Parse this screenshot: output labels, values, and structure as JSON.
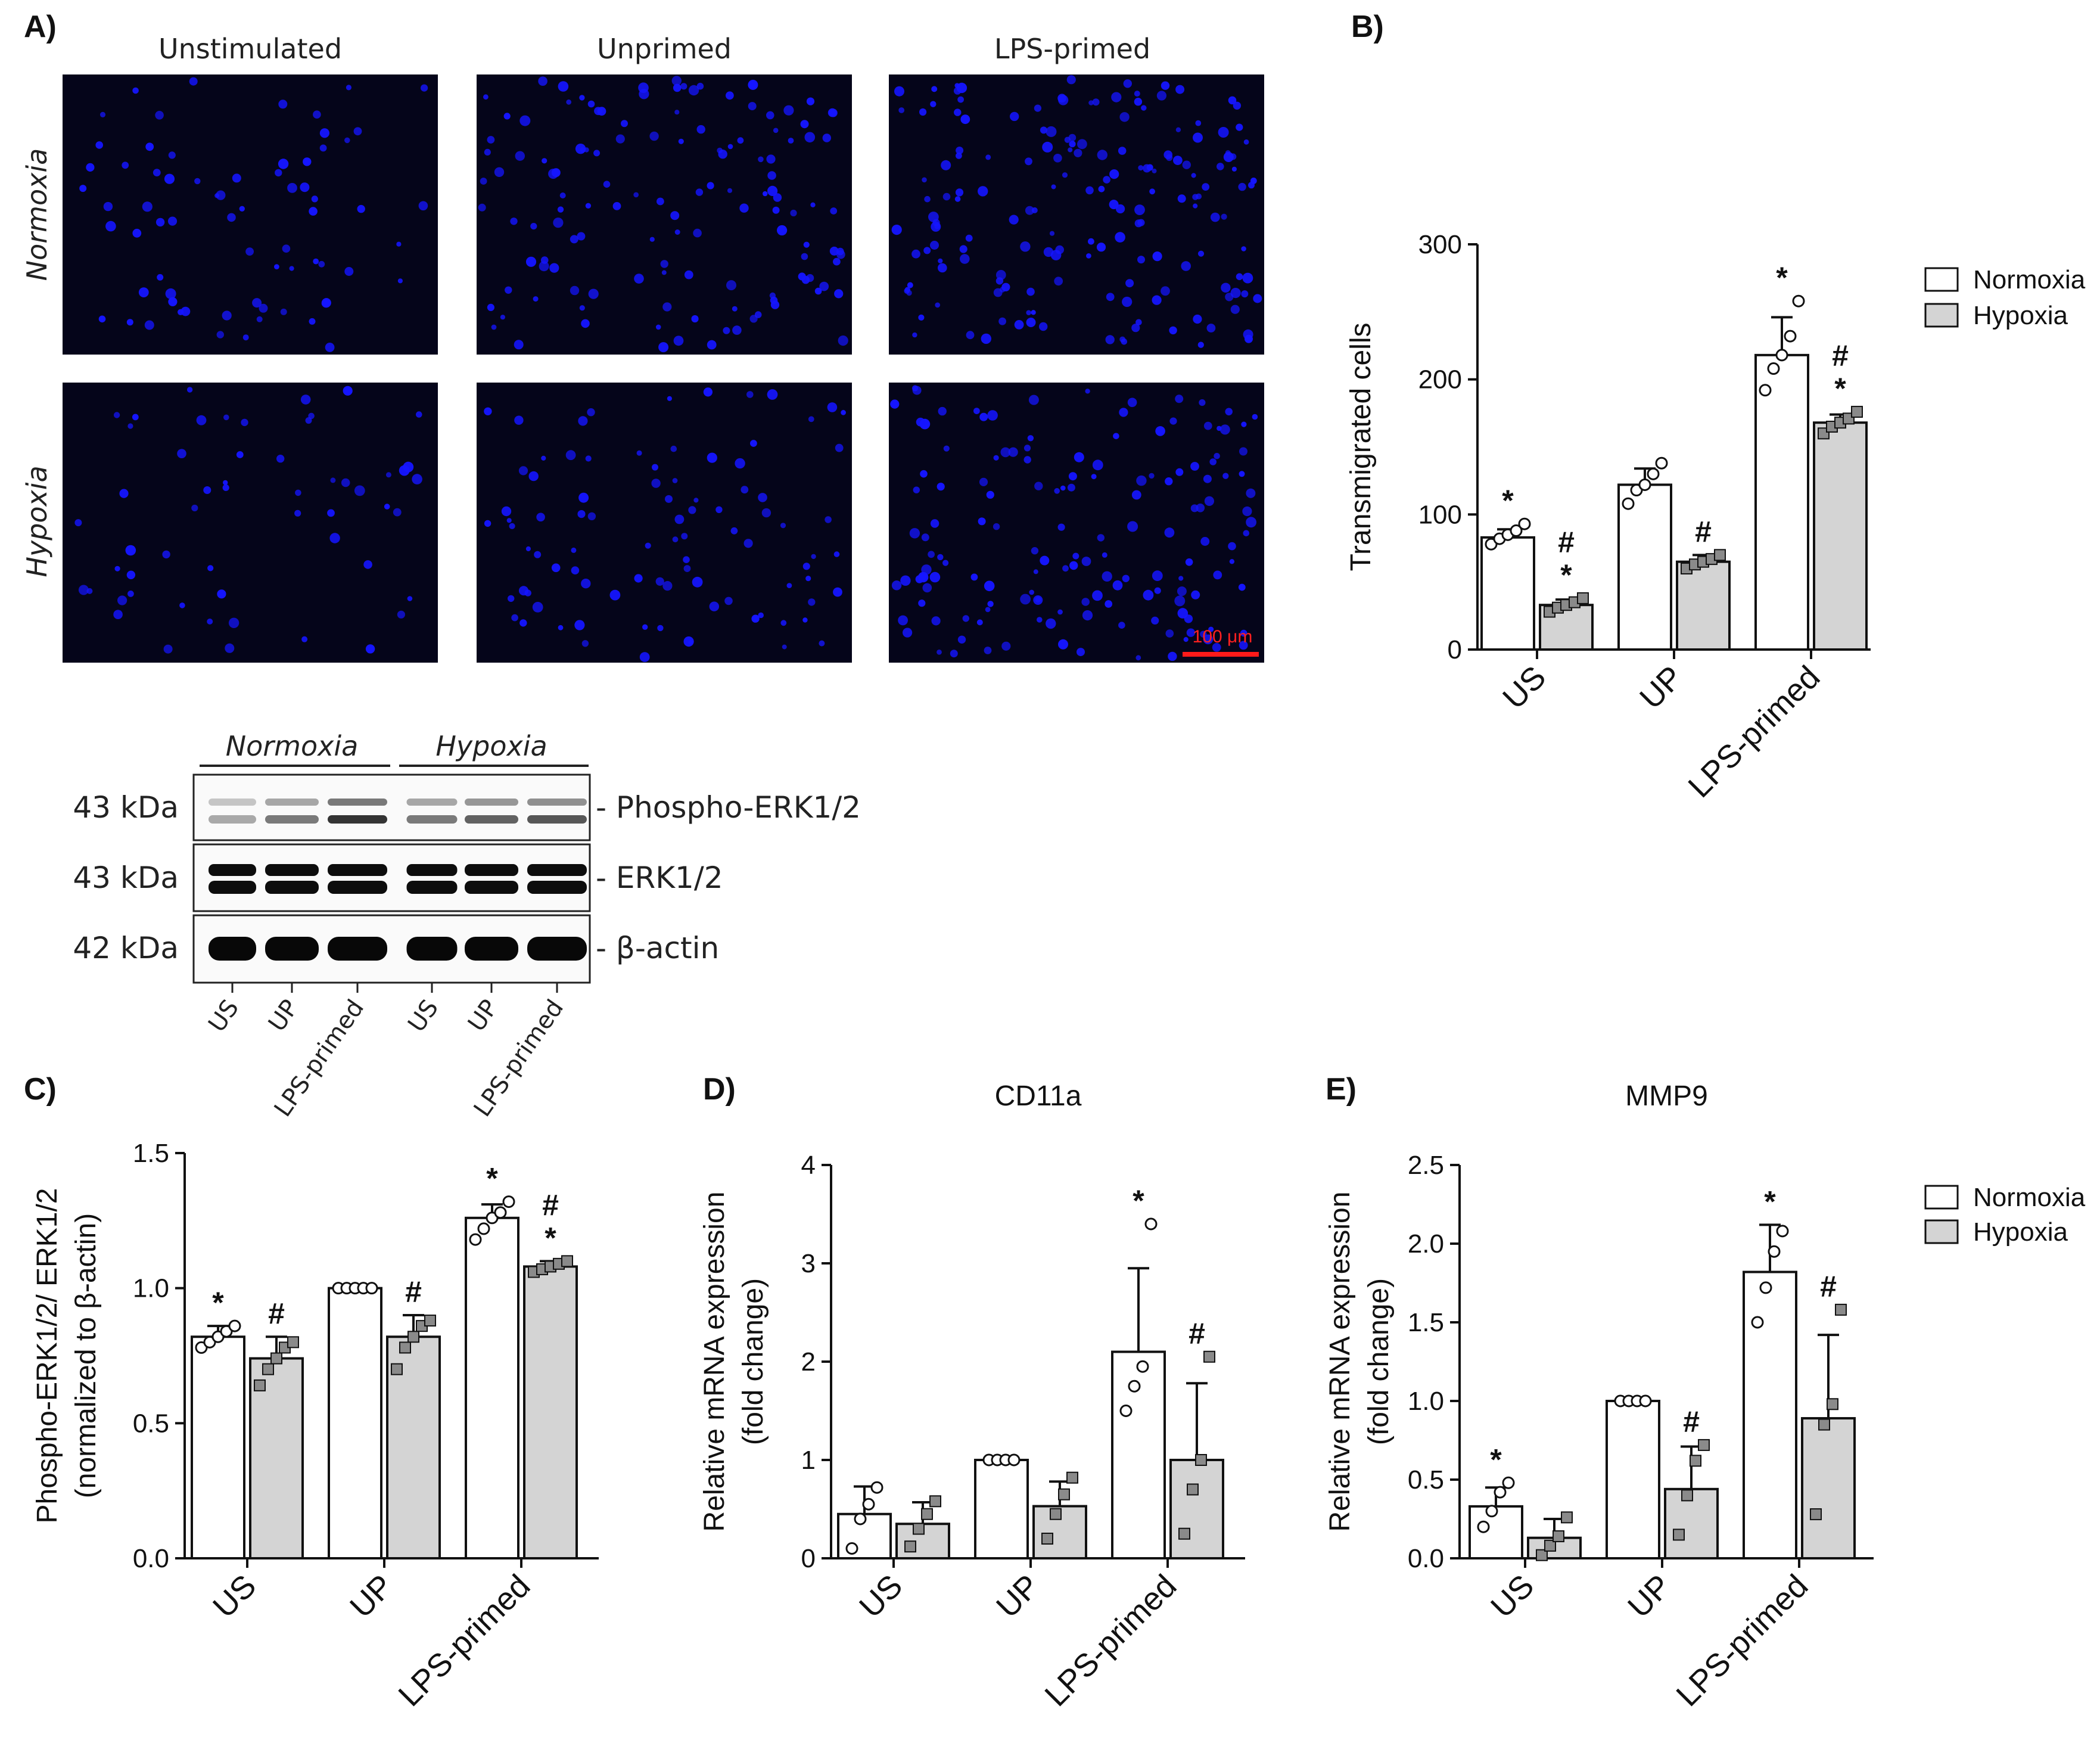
{
  "panel_letters": {
    "a": "A)",
    "b": "B)",
    "c": "C)",
    "d": "D)",
    "e": "E)"
  },
  "micrographs": {
    "columns": [
      "Unstimulated",
      "Unprimed",
      "LPS-primed"
    ],
    "rows": [
      "Normoxia",
      "Hypoxia"
    ],
    "scale_bar": "100 μm",
    "background_color": "#05051a",
    "nucleus_color": "#1515ff",
    "scale_bar_color": "#ff1a1a"
  },
  "western_blot": {
    "groups": [
      "Normoxia",
      "Hypoxia"
    ],
    "bands": [
      {
        "kda": "43 kDa",
        "name": "- Phospho-ERK1/2"
      },
      {
        "kda": "43 kDa",
        "name": "- ERK1/2"
      },
      {
        "kda": "42 kDa",
        "name": "- β-actin"
      }
    ],
    "lanes": [
      "US",
      "UP",
      "LPS-primed",
      "US",
      "UP",
      "LPS-primed"
    ]
  },
  "legend": {
    "entries": [
      "Normoxia",
      "Hypoxia"
    ]
  },
  "colors": {
    "normoxia_fill": "#ffffff",
    "hypoxia_fill": "#d4d4d4",
    "ink": "#111111"
  },
  "chart_data": [
    {
      "id": "B",
      "type": "bar",
      "title": "",
      "ylabel": "Transmigrated cells",
      "ylim": [
        0,
        300
      ],
      "yticks": [
        "0",
        "100",
        "200",
        "300"
      ],
      "categories": [
        "US",
        "UP",
        "LPS-primed"
      ],
      "series": [
        {
          "name": "Normoxia",
          "values": [
            83,
            122,
            218
          ],
          "errors": [
            6,
            12,
            28
          ],
          "points": [
            [
              78,
              82,
              85,
              88,
              93
            ],
            [
              108,
              118,
              122,
              130,
              138
            ],
            [
              192,
              208,
              218,
              232,
              258
            ]
          ],
          "annotations": [
            "*",
            "",
            "*"
          ]
        },
        {
          "name": "Hypoxia",
          "values": [
            33,
            65,
            168
          ],
          "errors": [
            4,
            5,
            6
          ],
          "points": [
            [
              28,
              31,
              33,
              35,
              38
            ],
            [
              60,
              63,
              65,
              67,
              70
            ],
            [
              160,
              165,
              168,
              171,
              176
            ]
          ],
          "annotations": [
            "#\n*",
            "#",
            "#\n*"
          ]
        }
      ],
      "legend": "right"
    },
    {
      "id": "C",
      "type": "bar",
      "title": "",
      "ylabel": "Phospho-ERK1/2/ ERK1/2",
      "ylabel2": "(normalized to β-actin)",
      "ylim": [
        0,
        1.5
      ],
      "yticks": [
        "0.0",
        "0.5",
        "1.0",
        "1.5"
      ],
      "categories": [
        "US",
        "UP",
        "LPS-primed"
      ],
      "series": [
        {
          "name": "Normoxia",
          "values": [
            0.82,
            1.0,
            1.26
          ],
          "errors": [
            0.04,
            0.0,
            0.05
          ],
          "points": [
            [
              0.78,
              0.8,
              0.82,
              0.84,
              0.86
            ],
            [
              1.0,
              1.0,
              1.0,
              1.0,
              1.0
            ],
            [
              1.18,
              1.22,
              1.26,
              1.28,
              1.32
            ]
          ],
          "annotations": [
            "*",
            "",
            "*"
          ]
        },
        {
          "name": "Hypoxia",
          "values": [
            0.74,
            0.82,
            1.08
          ],
          "errors": [
            0.08,
            0.08,
            0.02
          ],
          "points": [
            [
              0.64,
              0.7,
              0.74,
              0.78,
              0.8
            ],
            [
              0.7,
              0.78,
              0.82,
              0.86,
              0.88
            ],
            [
              1.06,
              1.07,
              1.08,
              1.09,
              1.1
            ]
          ],
          "annotations": [
            "#",
            "#",
            "#\n*"
          ]
        }
      ],
      "legend": "none"
    },
    {
      "id": "D",
      "type": "bar",
      "title": "CD11a",
      "ylabel": "Relative mRNA expression",
      "ylabel2": "(fold change)",
      "ylim": [
        0,
        4
      ],
      "yticks": [
        "0",
        "1",
        "2",
        "3",
        "4"
      ],
      "categories": [
        "US",
        "UP",
        "LPS-primed"
      ],
      "series": [
        {
          "name": "Normoxia",
          "values": [
            0.45,
            1.0,
            2.1
          ],
          "errors": [
            0.28,
            0.0,
            0.85
          ],
          "points": [
            [
              0.1,
              0.4,
              0.55,
              0.72
            ],
            [
              1.0,
              1.0,
              1.0,
              1.0
            ],
            [
              1.5,
              1.75,
              1.95,
              3.4
            ]
          ],
          "annotations": [
            "",
            "",
            "*"
          ]
        },
        {
          "name": "Hypoxia",
          "values": [
            0.35,
            0.53,
            1.0
          ],
          "errors": [
            0.22,
            0.25,
            0.78
          ],
          "points": [
            [
              0.12,
              0.3,
              0.45,
              0.58
            ],
            [
              0.2,
              0.45,
              0.65,
              0.82
            ],
            [
              0.25,
              0.7,
              1.0,
              2.05
            ]
          ],
          "annotations": [
            "",
            "",
            "#"
          ]
        }
      ],
      "legend": "none"
    },
    {
      "id": "E",
      "type": "bar",
      "title": "MMP9",
      "ylabel": "Relative mRNA expression",
      "ylabel2": "(fold change)",
      "ylim": [
        0,
        2.5
      ],
      "yticks": [
        "0.0",
        "0.5",
        "1.0",
        "1.5",
        "2.0",
        "2.5"
      ],
      "categories": [
        "US",
        "UP",
        "LPS-primed"
      ],
      "series": [
        {
          "name": "Normoxia",
          "values": [
            0.33,
            1.0,
            1.82
          ],
          "errors": [
            0.12,
            0.0,
            0.3
          ],
          "points": [
            [
              0.2,
              0.3,
              0.42,
              0.48
            ],
            [
              1.0,
              1.0,
              1.0,
              1.0
            ],
            [
              1.5,
              1.72,
              1.95,
              2.08
            ]
          ],
          "annotations": [
            "*",
            "",
            "*"
          ]
        },
        {
          "name": "Hypoxia",
          "values": [
            0.13,
            0.44,
            0.89
          ],
          "errors": [
            0.12,
            0.27,
            0.53
          ],
          "points": [
            [
              0.02,
              0.08,
              0.14,
              0.26
            ],
            [
              0.15,
              0.4,
              0.62,
              0.72
            ],
            [
              0.28,
              0.85,
              0.98,
              1.58
            ]
          ],
          "annotations": [
            "",
            "#",
            "#"
          ]
        }
      ],
      "legend": "right"
    }
  ]
}
